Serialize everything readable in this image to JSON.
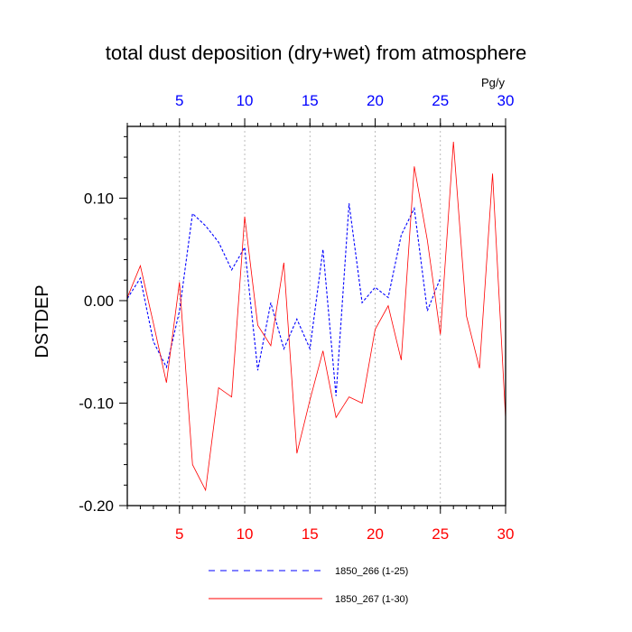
{
  "chart_data": {
    "type": "line",
    "title": "total dust deposition (dry+wet) from atmosphere",
    "ylabel": "DSTDEP",
    "units": "Pg/y",
    "xlim": [
      1,
      30
    ],
    "ylim": [
      -0.2,
      0.17
    ],
    "x_major_ticks": [
      5,
      10,
      15,
      20,
      25,
      30
    ],
    "x_tick_labels": [
      "5",
      "10",
      "15",
      "20",
      "25",
      "30"
    ],
    "y_major_ticks": [
      0.1,
      0.0,
      -0.1,
      -0.2
    ],
    "y_tick_labels": [
      "0.10",
      "0.00",
      "-0.10",
      "-0.20"
    ],
    "grid": "dotted vertical at x ticks",
    "legend_position": "bottom",
    "bottom_axis_color": "#ff0000",
    "top_axis_color": "#0000ff",
    "series": [
      {
        "name": "1850_266 (1-25)",
        "color": "#0000ff",
        "dash": "dashed",
        "x": [
          1,
          2,
          3,
          4,
          5,
          6,
          7,
          8,
          9,
          10,
          11,
          12,
          13,
          14,
          15,
          16,
          17,
          18,
          19,
          20,
          21,
          22,
          23,
          24,
          25
        ],
        "values": [
          0.002,
          0.022,
          -0.04,
          -0.065,
          -0.01,
          0.085,
          0.073,
          0.057,
          0.03,
          0.052,
          -0.068,
          -0.002,
          -0.047,
          -0.018,
          -0.047,
          0.05,
          -0.093,
          0.095,
          -0.002,
          0.013,
          0.003,
          0.064,
          0.09,
          -0.01,
          0.022
        ]
      },
      {
        "name": "1850_267 (1-30)",
        "color": "#ff0000",
        "dash": "solid",
        "x": [
          1,
          2,
          3,
          4,
          5,
          6,
          7,
          8,
          9,
          10,
          11,
          12,
          13,
          14,
          15,
          16,
          17,
          18,
          19,
          20,
          21,
          22,
          23,
          24,
          25,
          26,
          27,
          28,
          29,
          30
        ],
        "values": [
          0.003,
          0.034,
          -0.022,
          -0.08,
          0.018,
          -0.16,
          -0.185,
          -0.085,
          -0.094,
          0.082,
          -0.024,
          -0.044,
          0.037,
          -0.149,
          -0.097,
          -0.049,
          -0.114,
          -0.094,
          -0.1,
          -0.028,
          -0.005,
          -0.058,
          0.131,
          0.059,
          -0.033,
          0.155,
          -0.015,
          -0.066,
          0.124,
          -0.115
        ]
      }
    ]
  }
}
